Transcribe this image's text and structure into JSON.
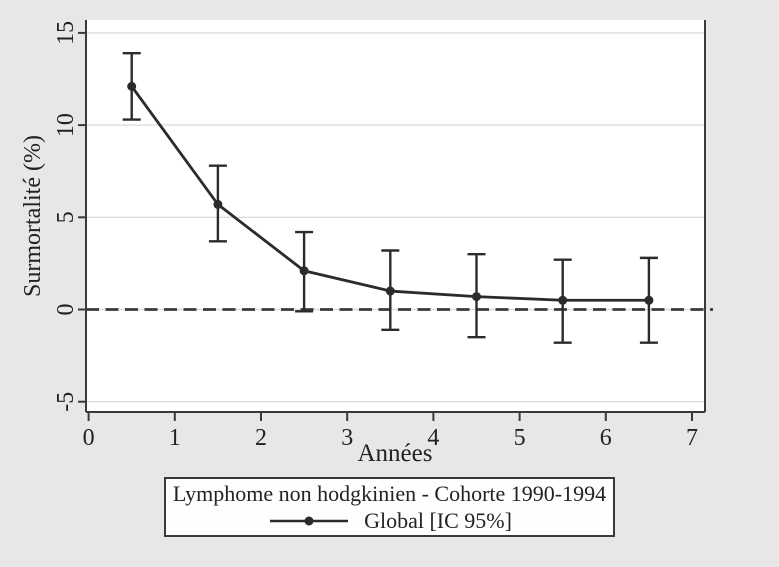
{
  "figure": {
    "background_color": "#e7e7e7",
    "plot_background_color": "#ffffff",
    "axis_color": "#3a3a3a",
    "grid_color": "#dcdcdc",
    "series_color": "#2b2b2b",
    "text_color": "#222222"
  },
  "chart_data": {
    "type": "line",
    "title": "",
    "xlabel": "Années",
    "ylabel": "Surmortalité (%)",
    "xlim": [
      0,
      7.2
    ],
    "ylim": [
      -5.6,
      15.7
    ],
    "x_ticks": [
      0,
      1,
      2,
      3,
      4,
      5,
      6,
      7
    ],
    "y_ticks": [
      15,
      10,
      5,
      0,
      -5
    ],
    "grid": true,
    "reference_line": {
      "y": 0,
      "style": "dashed"
    },
    "series": [
      {
        "name": "Global [IC 95%]",
        "x": [
          0.5,
          1.5,
          2.5,
          3.5,
          4.5,
          5.5,
          6.5
        ],
        "y": [
          12.1,
          5.7,
          2.1,
          1.0,
          0.7,
          0.5,
          0.5
        ],
        "ci_low": [
          10.3,
          3.7,
          -0.1,
          -1.1,
          -1.5,
          -1.8,
          -1.8
        ],
        "ci_high": [
          13.9,
          7.8,
          4.2,
          3.2,
          3.0,
          2.7,
          2.8
        ]
      }
    ],
    "legend": {
      "position": "bottom",
      "title": "Lymphome non hodgkinien - Cohorte 1990-1994",
      "entries": [
        "Global [IC 95%]"
      ]
    }
  }
}
